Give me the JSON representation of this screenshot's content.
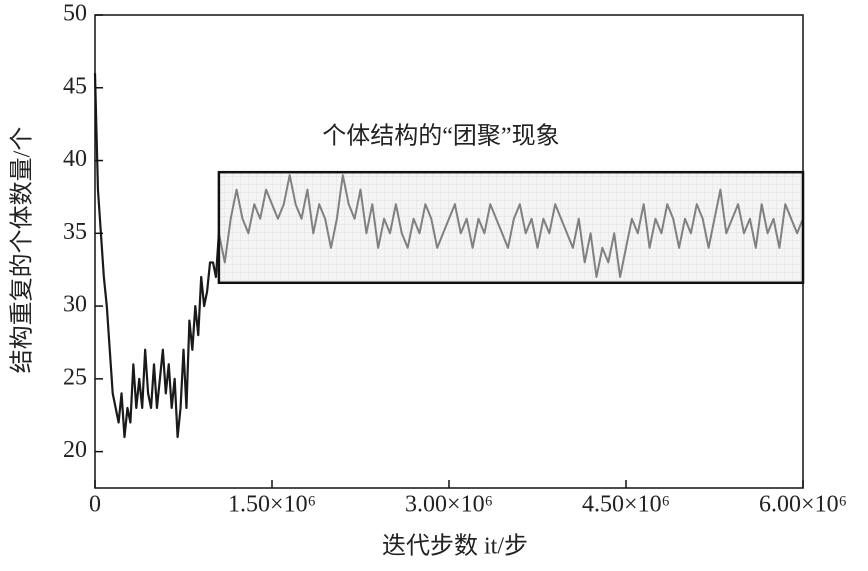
{
  "chart_data": {
    "type": "line",
    "x_label": "迭代步数 it/步",
    "y_label": "结构重复的个体数量/个",
    "xlim": [
      0,
      6000000
    ],
    "ylim": [
      17.5,
      50
    ],
    "xticks": [
      0,
      {
        "value": 1500000,
        "label": "1.50×10⁶"
      },
      {
        "value": 3000000,
        "label": "3.00×10⁶"
      },
      {
        "value": 4500000,
        "label": "4.50×10⁶"
      },
      {
        "value": 6000000,
        "label": "6.00×10⁶"
      }
    ],
    "yticks": [
      20,
      25,
      30,
      35,
      40,
      45,
      50
    ],
    "highlight": {
      "label": "个体结构的“团聚”现象",
      "xlim": [
        1050000,
        6000000
      ],
      "ylim": [
        31.6,
        39.2
      ]
    },
    "series": [
      {
        "color": "#1a1a1a",
        "x": [
          0,
          25000,
          50000,
          75000,
          100000,
          125000,
          150000,
          175000,
          200000,
          225000,
          250000,
          275000,
          300000,
          325000,
          350000,
          375000,
          400000,
          425000,
          450000,
          475000,
          500000,
          525000,
          550000,
          575000,
          600000,
          625000,
          650000,
          675000,
          700000,
          725000,
          750000,
          775000,
          800000,
          825000,
          850000,
          875000,
          900000,
          925000,
          950000,
          975000,
          1000000,
          1025000,
          1050000
        ],
        "values": [
          46,
          38,
          35,
          32,
          30,
          27,
          24,
          23,
          22,
          24,
          21,
          23,
          22,
          26,
          23,
          25,
          23,
          27,
          24,
          23,
          26,
          23,
          25,
          27,
          24,
          26,
          23,
          25,
          21,
          23,
          27,
          23,
          29,
          27,
          30,
          28,
          32,
          30,
          31,
          33,
          33,
          32,
          35
        ]
      },
      {
        "color": "#808080",
        "x": [
          1050000,
          1100000,
          1150000,
          1200000,
          1250000,
          1300000,
          1350000,
          1400000,
          1450000,
          1500000,
          1550000,
          1600000,
          1650000,
          1700000,
          1750000,
          1800000,
          1850000,
          1900000,
          1950000,
          2000000,
          2050000,
          2100000,
          2150000,
          2200000,
          2250000,
          2300000,
          2350000,
          2400000,
          2450000,
          2500000,
          2550000,
          2600000,
          2650000,
          2700000,
          2750000,
          2800000,
          2850000,
          2900000,
          2950000,
          3000000,
          3050000,
          3100000,
          3150000,
          3200000,
          3250000,
          3300000,
          3350000,
          3400000,
          3450000,
          3500000,
          3550000,
          3600000,
          3650000,
          3700000,
          3750000,
          3800000,
          3850000,
          3900000,
          3950000,
          4000000,
          4050000,
          4100000,
          4150000,
          4200000,
          4250000,
          4300000,
          4350000,
          4400000,
          4450000,
          4500000,
          4550000,
          4600000,
          4650000,
          4700000,
          4750000,
          4800000,
          4850000,
          4900000,
          4950000,
          5000000,
          5050000,
          5100000,
          5150000,
          5200000,
          5250000,
          5300000,
          5350000,
          5400000,
          5450000,
          5500000,
          5550000,
          5600000,
          5650000,
          5700000,
          5750000,
          5800000,
          5850000,
          5900000,
          5950000,
          6000000
        ],
        "values": [
          35,
          33,
          36,
          38,
          36,
          35,
          37,
          36,
          38,
          37,
          36,
          37,
          39,
          37,
          36,
          38,
          35,
          37,
          36,
          34,
          36,
          39,
          37,
          36,
          38,
          35,
          37,
          34,
          36,
          35,
          37,
          35,
          34,
          36,
          35,
          37,
          36,
          34,
          35,
          36,
          37,
          35,
          36,
          34,
          36,
          35,
          37,
          36,
          35,
          34,
          36,
          37,
          35,
          36,
          34,
          36,
          35,
          37,
          36,
          35,
          34,
          36,
          33,
          35,
          32,
          34,
          33,
          35,
          32,
          34,
          36,
          35,
          37,
          34,
          36,
          35,
          37,
          36,
          34,
          36,
          35,
          37,
          36,
          34,
          36,
          38,
          35,
          36,
          37,
          35,
          36,
          34,
          37,
          35,
          36,
          34,
          37,
          36,
          35,
          36
        ]
      }
    ]
  }
}
